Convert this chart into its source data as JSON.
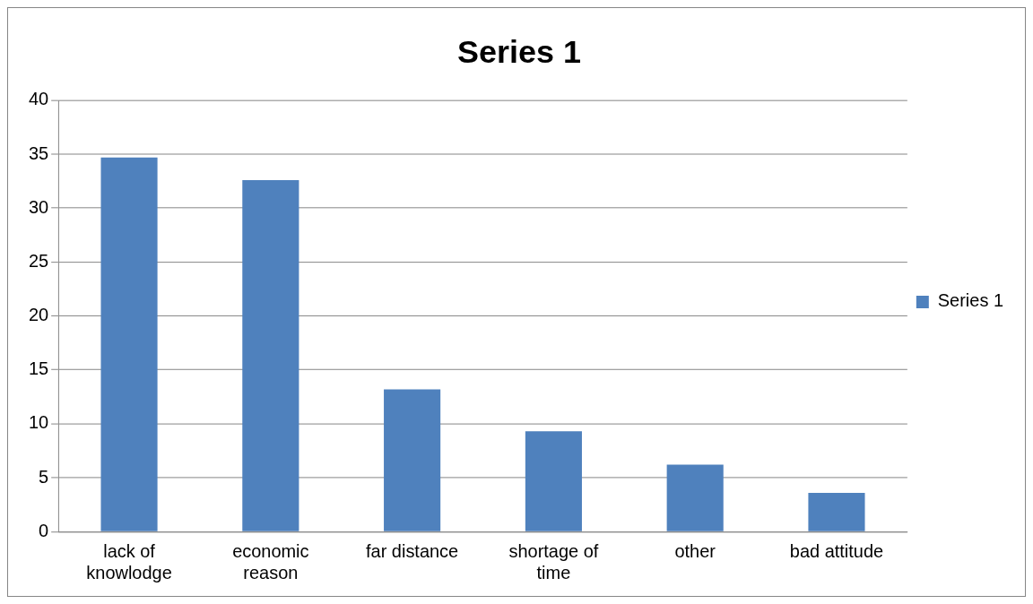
{
  "chart_data": {
    "type": "bar",
    "title": "Series 1",
    "categories": [
      "lack of knowlodge",
      "economic reason",
      "far distance",
      "shortage of time",
      "other",
      "bad attitude"
    ],
    "series": [
      {
        "name": "Series 1",
        "color": "#4f81bd",
        "values": [
          34.7,
          32.6,
          13.2,
          9.3,
          6.2,
          3.6
        ]
      }
    ],
    "ylim": [
      0,
      40
    ],
    "yticks": [
      0,
      5,
      10,
      15,
      20,
      25,
      30,
      35,
      40
    ],
    "grid": "y",
    "legend": "right"
  }
}
